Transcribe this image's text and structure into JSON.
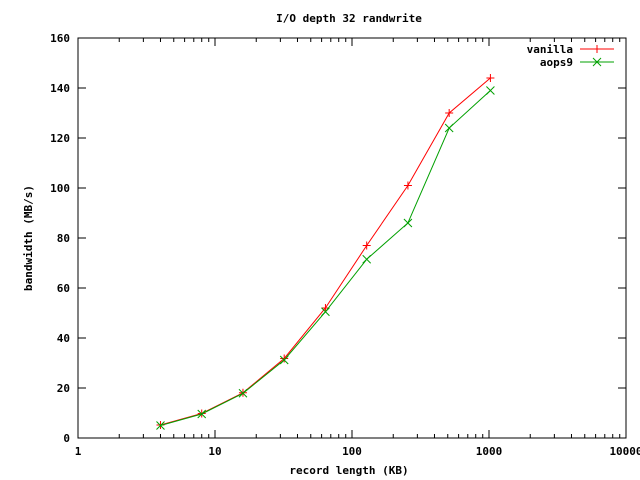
{
  "chart_data": {
    "type": "line",
    "title": "I/O depth 32 randwrite",
    "xlabel": "record length (KB)",
    "ylabel": "bandwidth (MB/s)",
    "x_scale": "log",
    "xlim": [
      1,
      10000
    ],
    "ylim": [
      0,
      160
    ],
    "x_ticks": [
      1,
      10,
      100,
      1000,
      10000
    ],
    "y_ticks": [
      0,
      20,
      40,
      60,
      80,
      100,
      120,
      140,
      160
    ],
    "grid": false,
    "legend": "top-right",
    "x": [
      4,
      8,
      16,
      32,
      64,
      128,
      256,
      512,
      1024
    ],
    "series": [
      {
        "name": "vanilla",
        "color": "#ff0000",
        "marker": "plus",
        "values": [
          5.2,
          9.8,
          18.1,
          31.8,
          52.0,
          77.0,
          101.0,
          130.0,
          144.0
        ]
      },
      {
        "name": "aops9",
        "color": "#00a000",
        "marker": "cross",
        "values": [
          5.0,
          9.6,
          17.9,
          31.2,
          50.5,
          71.5,
          86.0,
          124.0,
          139.0
        ]
      }
    ]
  }
}
